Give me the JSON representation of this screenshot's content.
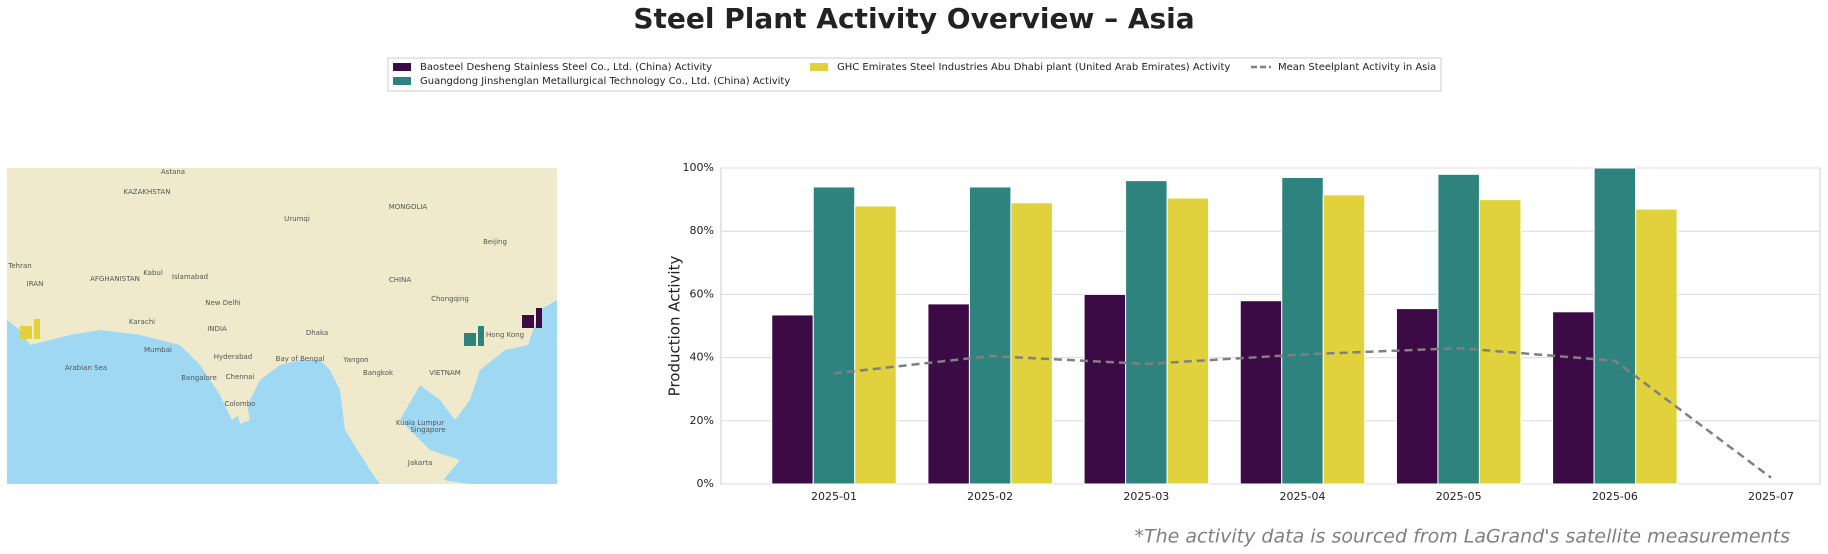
{
  "chart_data": {
    "type": "bar",
    "title": "Steel Plant Activity Overview – Asia",
    "y_label": "Production Activity",
    "footnote": "*The activity data is sourced from LaGrand's satellite measurements",
    "categories": [
      "2025-01",
      "2025-02",
      "2025-03",
      "2025-04",
      "2025-05",
      "2025-06",
      "2025-07"
    ],
    "series": [
      {
        "name": "Baosteel Desheng Stainless Steel Co., Ltd. (China) Activity",
        "color": "#3c0b45",
        "values": [
          53.5,
          57,
          60,
          58,
          55.5,
          54.5,
          null
        ]
      },
      {
        "name": "Guangdong Jinshenglan Metallurgical Technology Co., Ltd. (China) Activity",
        "color": "#2e837e",
        "values": [
          94,
          94,
          96,
          97,
          98,
          100,
          null
        ]
      },
      {
        "name": "GHC Emirates Steel Industries Abu Dhabi plant (United Arab Emirates) Activity",
        "color": "#e1d23d",
        "values": [
          88,
          89,
          90.5,
          91.5,
          90,
          87,
          null
        ]
      },
      {
        "name": "Mean Steelplant Activity in Asia",
        "color": "#808080",
        "type": "line",
        "dashed": true,
        "values": [
          35,
          40.5,
          38,
          41,
          43,
          39,
          2
        ]
      }
    ],
    "ylim": [
      0,
      100
    ],
    "yticks": [
      {
        "value": 0,
        "label": "0%"
      },
      {
        "value": 20,
        "label": "20%"
      },
      {
        "value": 40,
        "label": "40%"
      },
      {
        "value": 60,
        "label": "60%"
      },
      {
        "value": 80,
        "label": "80%"
      },
      {
        "value": 100,
        "label": "100%"
      }
    ],
    "grid": true
  },
  "map": {
    "labels": [
      "Astana",
      "KAZAKHSTAN",
      "MONGOLIA",
      "Urumqi",
      "CHINA",
      "Beijing",
      "Tehran",
      "IRAN",
      "AFGHANISTAN",
      "Kabul",
      "Islamabad",
      "New Delhi",
      "INDIA",
      "Karachi",
      "Mumbai",
      "Hyderabad",
      "Bangalore",
      "Chennai",
      "Colombo",
      "Bay of Bengal",
      "Arabian Sea",
      "Dhaka",
      "Yangon",
      "Bangkok",
      "Hong Kong",
      "Chongqing",
      "Kuala Lumpur",
      "Singapore",
      "Jakarta",
      "VIETNAM"
    ]
  }
}
